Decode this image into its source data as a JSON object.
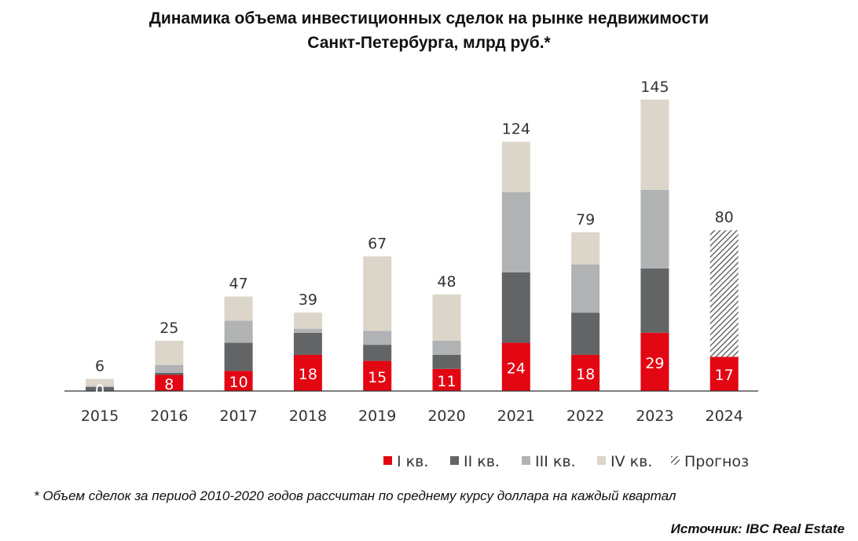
{
  "title": {
    "line1": "Динамика объема инвестиционных сделок на рынке недвижимости",
    "line2": "Санкт-Петербурга, млрд руб.*"
  },
  "footnote": "* Объем сделок за период 2010-2020 годов рассчитан по среднему курсу доллара на каждый квартал",
  "source": "Источник: IBC Real Estate",
  "colors": {
    "q1": "#e30613",
    "q2": "#636466",
    "q3": "#b1b2b4",
    "q4": "#dcd5c9",
    "forecast": "#555555",
    "axis": "#333333",
    "text": "#333333"
  },
  "chart_data": {
    "type": "bar",
    "stacked": true,
    "categories": [
      "2015",
      "2016",
      "2017",
      "2018",
      "2019",
      "2020",
      "2021",
      "2022",
      "2023",
      "2024"
    ],
    "series": [
      {
        "name": "I кв.",
        "color_key": "q1",
        "values": [
          0,
          8,
          10,
          18,
          15,
          11,
          24,
          18,
          29,
          17
        ],
        "labels": [
          "0",
          "8",
          "10",
          "18",
          "15",
          "11",
          "24",
          "18",
          "29",
          "17"
        ]
      },
      {
        "name": "II кв.",
        "color_key": "q2",
        "values": [
          2,
          1,
          14,
          11,
          8,
          7,
          35,
          21,
          32,
          null
        ]
      },
      {
        "name": "III кв.",
        "color_key": "q3",
        "values": [
          0.5,
          4,
          11,
          2,
          7,
          7,
          40,
          24,
          39,
          null
        ]
      },
      {
        "name": "IV кв.",
        "color_key": "q4",
        "values": [
          3.5,
          12,
          12,
          8,
          37,
          23,
          25,
          16,
          45,
          null
        ]
      },
      {
        "name": "Прогноз",
        "color_key": "forecast",
        "pattern": "hatch",
        "values": [
          null,
          null,
          null,
          null,
          null,
          null,
          null,
          null,
          null,
          63
        ]
      }
    ],
    "totals": [
      "6",
      "25",
      "47",
      "39",
      "67",
      "48",
      "124",
      "79",
      "145",
      "80"
    ],
    "ylim": [
      0,
      150
    ],
    "grid": false,
    "legend_position": "bottom-right"
  }
}
